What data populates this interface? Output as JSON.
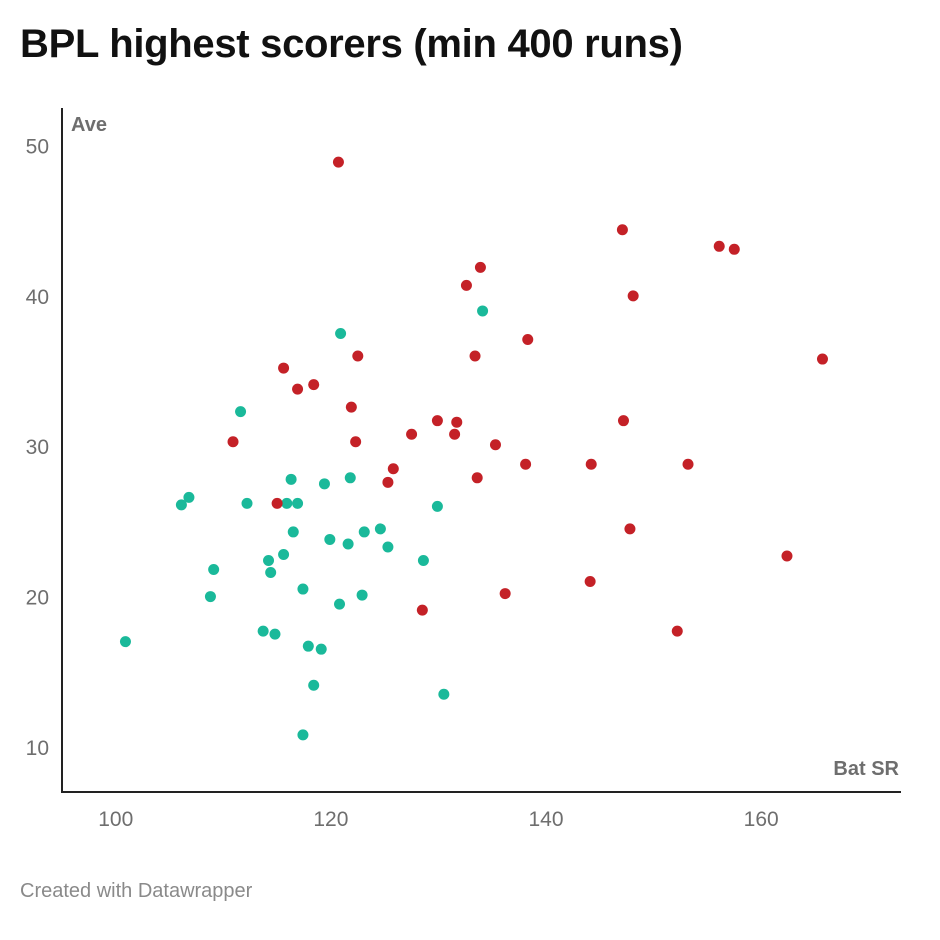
{
  "title": "BPL highest scorers (min 400 runs)",
  "credit": "Created with Datawrapper",
  "colors": {
    "teal": "#1ab99a",
    "red": "#c42127",
    "axis": "#222222",
    "text": "#6e6e6e"
  },
  "chart_data": {
    "type": "scatter",
    "title": "BPL highest scorers (min 400 runs)",
    "xlabel": "Bat SR",
    "ylabel": "Ave",
    "xlim": [
      95,
      173
    ],
    "ylim": [
      7,
      52.5
    ],
    "xticks": [
      100,
      120,
      140,
      160
    ],
    "yticks": [
      10,
      20,
      30,
      40,
      50
    ],
    "grid": false,
    "series": [
      {
        "color": "#1ab99a",
        "points": [
          [
            100.9,
            17.0
          ],
          [
            106.1,
            26.1
          ],
          [
            106.8,
            26.6
          ],
          [
            108.8,
            20.0
          ],
          [
            109.1,
            21.8
          ],
          [
            111.6,
            32.3
          ],
          [
            112.2,
            26.2
          ],
          [
            113.7,
            17.7
          ],
          [
            114.2,
            22.4
          ],
          [
            114.4,
            21.6
          ],
          [
            114.8,
            17.5
          ],
          [
            115.6,
            22.8
          ],
          [
            115.9,
            26.2
          ],
          [
            116.3,
            27.8
          ],
          [
            116.5,
            24.3
          ],
          [
            116.9,
            26.2
          ],
          [
            117.4,
            10.8
          ],
          [
            117.4,
            20.5
          ],
          [
            117.9,
            16.7
          ],
          [
            118.4,
            14.1
          ],
          [
            119.1,
            16.5
          ],
          [
            119.4,
            27.5
          ],
          [
            119.9,
            23.8
          ],
          [
            120.8,
            19.5
          ],
          [
            120.9,
            37.5
          ],
          [
            121.6,
            23.5
          ],
          [
            121.8,
            27.9
          ],
          [
            122.9,
            20.1
          ],
          [
            123.1,
            24.3
          ],
          [
            124.6,
            24.5
          ],
          [
            125.3,
            23.3
          ],
          [
            128.6,
            22.4
          ],
          [
            129.9,
            26.0
          ],
          [
            130.5,
            13.5
          ],
          [
            134.1,
            39.0
          ]
        ]
      },
      {
        "color": "#c42127",
        "points": [
          [
            110.9,
            30.3
          ],
          [
            115.0,
            26.2
          ],
          [
            115.6,
            35.2
          ],
          [
            116.9,
            33.8
          ],
          [
            118.4,
            34.1
          ],
          [
            120.7,
            48.9
          ],
          [
            121.9,
            32.6
          ],
          [
            122.3,
            30.3
          ],
          [
            122.5,
            36.0
          ],
          [
            125.3,
            27.6
          ],
          [
            125.8,
            28.5
          ],
          [
            127.5,
            30.8
          ],
          [
            128.5,
            19.1
          ],
          [
            129.9,
            31.7
          ],
          [
            131.5,
            30.8
          ],
          [
            131.7,
            31.6
          ],
          [
            132.6,
            40.7
          ],
          [
            133.4,
            36.0
          ],
          [
            133.6,
            27.9
          ],
          [
            133.9,
            41.9
          ],
          [
            135.3,
            30.1
          ],
          [
            136.2,
            20.2
          ],
          [
            138.1,
            28.8
          ],
          [
            138.3,
            37.1
          ],
          [
            144.1,
            21.0
          ],
          [
            144.2,
            28.8
          ],
          [
            147.1,
            44.4
          ],
          [
            147.2,
            31.7
          ],
          [
            147.8,
            24.5
          ],
          [
            148.1,
            40.0
          ],
          [
            152.2,
            17.7
          ],
          [
            153.2,
            28.8
          ],
          [
            156.1,
            43.3
          ],
          [
            157.5,
            43.1
          ],
          [
            162.4,
            22.7
          ],
          [
            165.7,
            35.8
          ]
        ]
      }
    ]
  }
}
